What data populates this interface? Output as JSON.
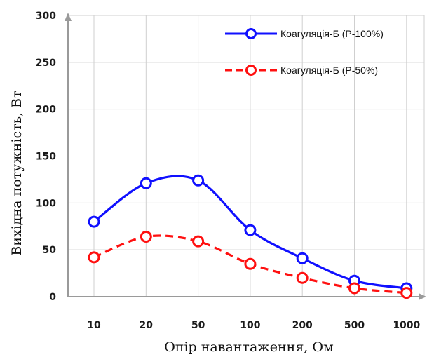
{
  "chart_data": {
    "type": "line",
    "title": "",
    "xlabel": "Опір навантаження, Ом",
    "ylabel": "Вихідна потужність, Вт",
    "categories": [
      "10",
      "20",
      "50",
      "100",
      "200",
      "500",
      "1000"
    ],
    "ylim": [
      0,
      300
    ],
    "yticks": [
      "0",
      "50",
      "100",
      "150",
      "200",
      "250",
      "300"
    ],
    "grid": true,
    "legend_position": "top-right",
    "series": [
      {
        "name": "Коагуляція-Б (Р-100%)",
        "color": "#1010ff",
        "dash": "solid",
        "values": [
          80,
          121,
          124,
          71,
          41,
          17,
          9
        ]
      },
      {
        "name": "Коагуляція-Б (Р-50%)",
        "color": "#ff1010",
        "dash": "dashed",
        "values": [
          42,
          64,
          59,
          35,
          20,
          9,
          4
        ]
      }
    ]
  }
}
